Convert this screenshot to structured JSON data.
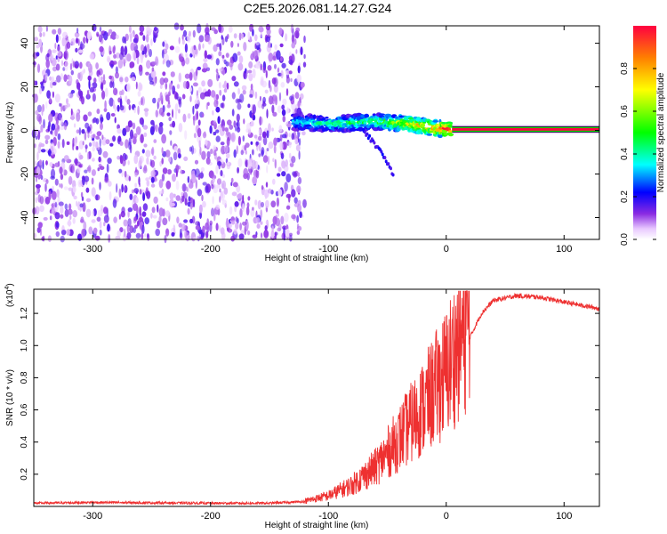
{
  "title": "C2E5.2026.081.14.27.G24",
  "chart_data": [
    {
      "type": "heatmap",
      "xlabel": "Height of straight line (km)",
      "ylabel": "Frequency (Hz)",
      "xlim": [
        -350,
        130
      ],
      "ylim": [
        -50,
        48
      ],
      "xticks": [
        -300,
        -200,
        -100,
        0,
        100
      ],
      "yticks": [
        -40,
        -20,
        0,
        20,
        40
      ],
      "colorbar": {
        "label": "Normalized spectral amplitude",
        "range": [
          0,
          1
        ],
        "ticks": [
          0.0,
          0.2,
          0.4,
          0.6,
          0.8
        ]
      },
      "features": {
        "noise_region_x": [
          -350,
          -130
        ],
        "noise_amplitude": 0.1,
        "signal_band": [
          {
            "x": -130,
            "f_center": 4,
            "amp": 0.35
          },
          {
            "x": -100,
            "f_center": 3,
            "amp": 0.45
          },
          {
            "x": -60,
            "f_center": 4,
            "amp": 0.5
          },
          {
            "x": -30,
            "f_center": 3,
            "amp": 0.75
          },
          {
            "x": -10,
            "f_center": 1,
            "amp": 0.85
          },
          {
            "x": 5,
            "f_center": 0.5,
            "amp": 1.0
          },
          {
            "x": 130,
            "f_center": 0.5,
            "amp": 1.0
          }
        ],
        "tail": [
          {
            "x": -70,
            "f": 0
          },
          {
            "x": -55,
            "f": -10
          },
          {
            "x": -45,
            "f": -20
          }
        ]
      }
    },
    {
      "type": "line",
      "xlabel": "Height of straight line (km)",
      "ylabel": "SNR (10 * v/v)",
      "y_multiplier": "(x10",
      "y_multiplier_exp": "4",
      "y_multiplier_close": ")",
      "xlim": [
        -350,
        130
      ],
      "ylim": [
        0,
        1.35
      ],
      "xticks": [
        -300,
        -200,
        -100,
        0,
        100
      ],
      "yticks": [
        0.2,
        0.4,
        0.6,
        0.8,
        1.0,
        1.2
      ],
      "color": "#ee3030",
      "envelope": [
        [
          -350,
          0.02
        ],
        [
          -300,
          0.025
        ],
        [
          -200,
          0.02
        ],
        [
          -150,
          0.02
        ],
        [
          -120,
          0.03
        ],
        [
          -100,
          0.06
        ],
        [
          -80,
          0.12
        ],
        [
          -60,
          0.22
        ],
        [
          -40,
          0.38
        ],
        [
          -20,
          0.55
        ],
        [
          0,
          0.75
        ],
        [
          10,
          0.9
        ],
        [
          20,
          1.05
        ],
        [
          30,
          1.2
        ],
        [
          40,
          1.28
        ],
        [
          60,
          1.31
        ],
        [
          80,
          1.3
        ],
        [
          100,
          1.27
        ],
        [
          130,
          1.23
        ]
      ]
    }
  ]
}
